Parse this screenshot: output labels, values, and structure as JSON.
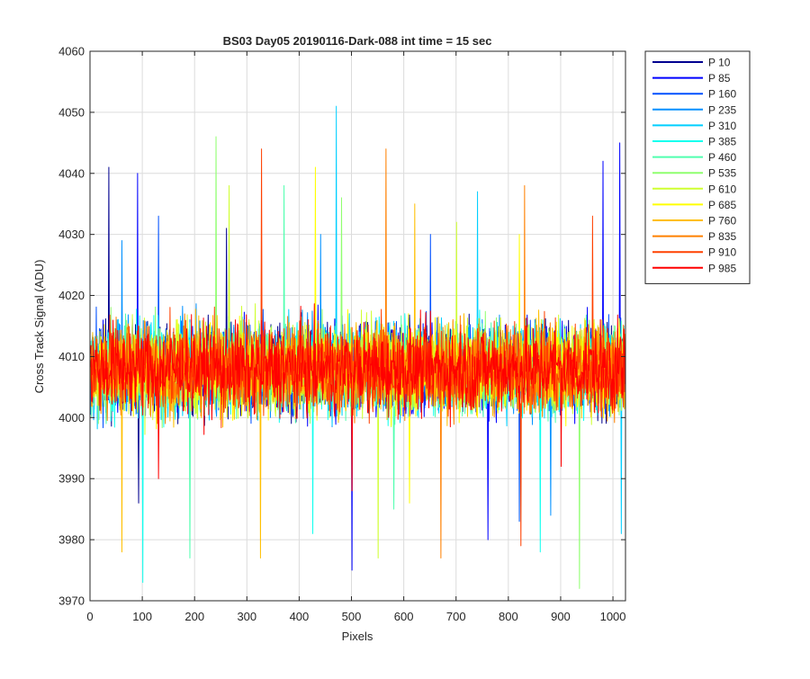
{
  "chart_data": {
    "type": "line",
    "title": "BS03 Day05 20190116-Dark-088 int time = 15 sec",
    "xlabel": "Pixels",
    "ylabel": "Cross Track Signal (ADU)",
    "xlim": [
      0,
      1024
    ],
    "ylim": [
      3970,
      4060
    ],
    "xticks": [
      0,
      100,
      200,
      300,
      400,
      500,
      600,
      700,
      800,
      900,
      1000
    ],
    "yticks": [
      3970,
      3980,
      3990,
      4000,
      4010,
      4020,
      4030,
      4040,
      4050,
      4060
    ],
    "grid": true,
    "legend_position": "outside-top-right",
    "x_points": 1024,
    "noise_center": 4008,
    "noise_spread": 7,
    "series": [
      {
        "name": "P 10",
        "color": "#00008f",
        "peaks": [
          [
            35,
            4041
          ],
          [
            92,
            3986
          ],
          [
            260,
            4031
          ]
        ]
      },
      {
        "name": "P 85",
        "color": "#0000ff",
        "peaks": [
          [
            90,
            4040
          ],
          [
            500,
            3975
          ],
          [
            1012,
            4045
          ],
          [
            980,
            4042
          ],
          [
            760,
            3980
          ]
        ]
      },
      {
        "name": "P 160",
        "color": "#0050ff",
        "peaks": [
          [
            130,
            4033
          ],
          [
            820,
            3983
          ],
          [
            650,
            4030
          ]
        ]
      },
      {
        "name": "P 235",
        "color": "#0090ff",
        "peaks": [
          [
            60,
            4029
          ],
          [
            440,
            4030
          ],
          [
            880,
            3984
          ]
        ]
      },
      {
        "name": "P 310",
        "color": "#00cfff",
        "peaks": [
          [
            470,
            4051
          ],
          [
            740,
            4037
          ],
          [
            1015,
            3981
          ]
        ]
      },
      {
        "name": "P 385",
        "color": "#10ffef",
        "peaks": [
          [
            100,
            3973
          ],
          [
            425,
            3981
          ],
          [
            860,
            3978
          ]
        ]
      },
      {
        "name": "P 460",
        "color": "#50ffaf",
        "peaks": [
          [
            190,
            3977
          ],
          [
            370,
            4038
          ],
          [
            580,
            3985
          ]
        ]
      },
      {
        "name": "P 535",
        "color": "#8fff6f",
        "peaks": [
          [
            240,
            4046
          ],
          [
            480,
            4036
          ],
          [
            935,
            3972
          ]
        ]
      },
      {
        "name": "P 610",
        "color": "#cfff30",
        "peaks": [
          [
            265,
            4038
          ],
          [
            550,
            3977
          ],
          [
            700,
            4032
          ]
        ]
      },
      {
        "name": "P 685",
        "color": "#ffff00",
        "peaks": [
          [
            430,
            4041
          ],
          [
            610,
            3986
          ],
          [
            820,
            4030
          ]
        ]
      },
      {
        "name": "P 760",
        "color": "#ffbf00",
        "peaks": [
          [
            325,
            3977
          ],
          [
            60,
            3978
          ],
          [
            620,
            4035
          ]
        ]
      },
      {
        "name": "P 835",
        "color": "#ff8000",
        "peaks": [
          [
            565,
            4044
          ],
          [
            670,
            3977
          ],
          [
            830,
            4038
          ]
        ]
      },
      {
        "name": "P 910",
        "color": "#ff4000",
        "peaks": [
          [
            327,
            4044
          ],
          [
            823,
            3979
          ],
          [
            960,
            4033
          ]
        ]
      },
      {
        "name": "P 985",
        "color": "#ff0000",
        "peaks": [
          [
            130,
            3990
          ],
          [
            500,
            3988
          ],
          [
            900,
            3992
          ]
        ]
      }
    ]
  }
}
